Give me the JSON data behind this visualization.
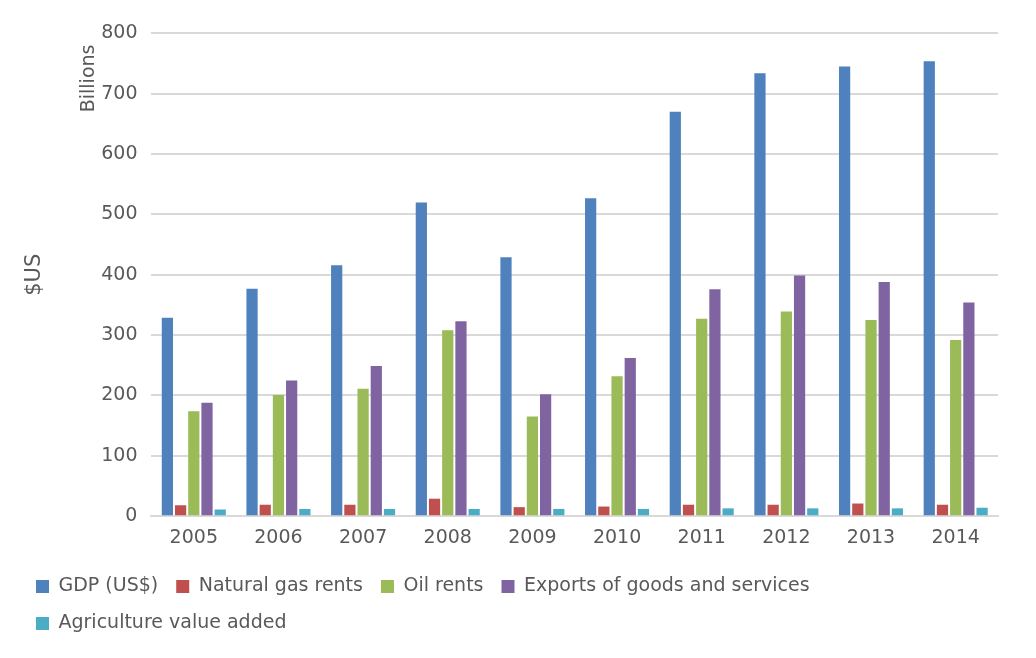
{
  "chart_data": {
    "type": "bar",
    "ylabel": "$US",
    "annotations": [
      "Billions"
    ],
    "categories": [
      "2005",
      "2006",
      "2007",
      "2008",
      "2009",
      "2010",
      "2011",
      "2012",
      "2013",
      "2014"
    ],
    "series": [
      {
        "name": "GDP (US$)",
        "color": "#4f81bd",
        "values": [
          329,
          377,
          416,
          520,
          429,
          527,
          670,
          734,
          745,
          754
        ]
      },
      {
        "name": "Natural gas rents",
        "color": "#c0504d",
        "values": [
          18,
          19,
          19,
          29,
          15,
          16,
          19,
          19,
          21,
          19
        ]
      },
      {
        "name": "Oil rents",
        "color": "#9bbb59",
        "values": [
          174,
          201,
          211,
          308,
          165,
          232,
          327,
          339,
          325,
          292
        ]
      },
      {
        "name": "Exports of goods and services",
        "color": "#8064a2",
        "values": [
          188,
          225,
          249,
          323,
          202,
          262,
          376,
          399,
          388,
          354
        ]
      },
      {
        "name": "Agriculture value added",
        "color": "#4bacc6",
        "values": [
          11,
          12,
          12,
          12,
          12,
          12,
          13,
          13,
          13,
          14
        ]
      }
    ],
    "ylim": [
      0,
      800
    ],
    "yticks": [
      0,
      100,
      200,
      300,
      400,
      500,
      600,
      700,
      800
    ],
    "grid": "y",
    "legend": "bottom"
  }
}
